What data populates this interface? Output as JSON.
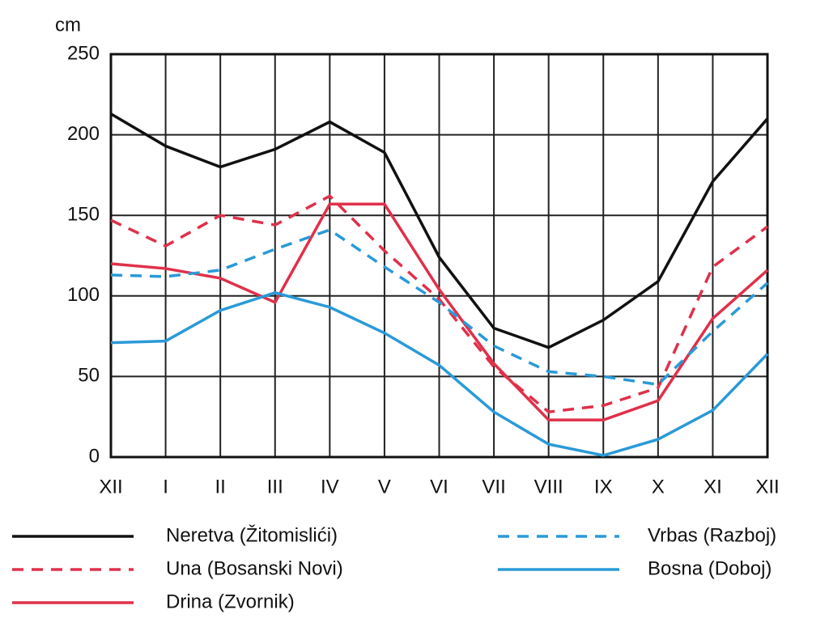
{
  "chart_data": {
    "type": "line",
    "y_label": "cm",
    "categories": [
      "XII",
      "I",
      "II",
      "III",
      "IV",
      "V",
      "VI",
      "VII",
      "VIII",
      "IX",
      "X",
      "XI",
      "XII"
    ],
    "series": [
      {
        "name": "Neretva (Žitomislići)",
        "color": "#111111",
        "dashed": false,
        "values": [
          213,
          193,
          180,
          191,
          208,
          189,
          124,
          80,
          68,
          85,
          109,
          171,
          210
        ]
      },
      {
        "name": "Una (Bosanski Novi)",
        "color": "#e0304a",
        "dashed": true,
        "values": [
          147,
          131,
          150,
          144,
          162,
          128,
          98,
          56,
          28,
          32,
          43,
          118,
          143
        ]
      },
      {
        "name": "Drina (Zvornik)",
        "color": "#e0304a",
        "dashed": false,
        "values": [
          120,
          117,
          111,
          96,
          157,
          157,
          104,
          58,
          23,
          23,
          35,
          86,
          116
        ]
      },
      {
        "name": "Vrbas (Razboj)",
        "color": "#2a9ad8",
        "dashed": true,
        "values": [
          113,
          112,
          116,
          129,
          141,
          118,
          96,
          69,
          53,
          50,
          45,
          78,
          108
        ]
      },
      {
        "name": "Bosna (Doboj)",
        "color": "#2a9ad8",
        "dashed": false,
        "values": [
          71,
          72,
          91,
          102,
          93,
          77,
          57,
          28,
          8,
          1,
          11,
          29,
          64
        ]
      }
    ],
    "ylim": [
      0,
      250
    ],
    "yticks": [
      0,
      50,
      100,
      150,
      200,
      250
    ],
    "grid": true
  }
}
